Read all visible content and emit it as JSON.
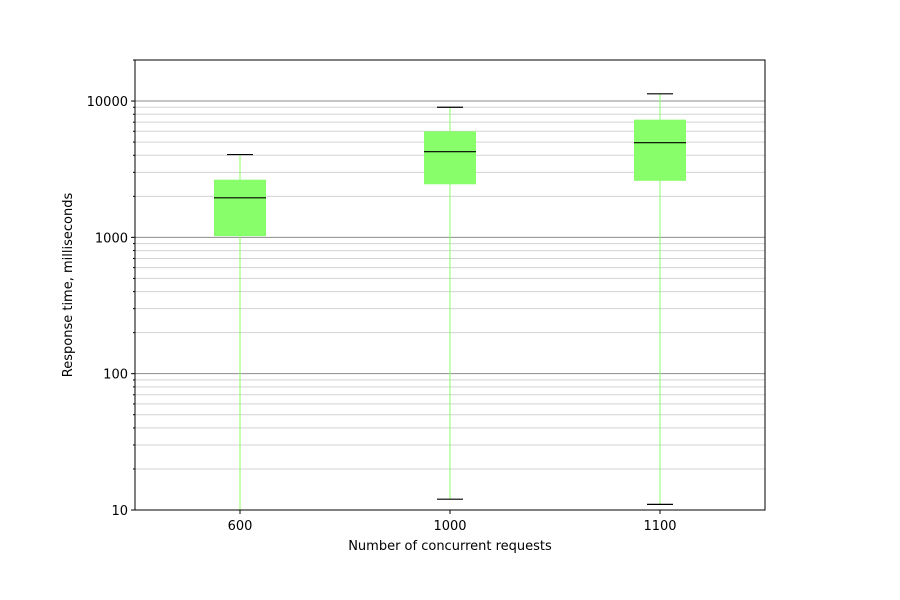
{
  "chart_data": {
    "type": "box",
    "title": "",
    "xlabel": "Number of concurrent requests",
    "ylabel": "Response time, milliseconds",
    "yscale": "log",
    "ylim": [
      10,
      20000
    ],
    "y_major_ticks": [
      10,
      100,
      1000,
      10000
    ],
    "y_tick_labels": [
      "10",
      "100",
      "1000",
      "10000"
    ],
    "grid": "horizontal major and minor",
    "categories": [
      "600",
      "1000",
      "1100"
    ],
    "boxes": [
      {
        "label": "600",
        "whisker_low": 10,
        "q1": 1020,
        "median": 1950,
        "q3": 2650,
        "whisker_high": 4050
      },
      {
        "label": "1000",
        "whisker_low": 12,
        "q1": 2450,
        "median": 4250,
        "q3": 6000,
        "whisker_high": 9000
      },
      {
        "label": "1100",
        "whisker_low": 11,
        "q1": 2600,
        "median": 4950,
        "q3": 7300,
        "whisker_high": 11300
      }
    ],
    "colors": {
      "box_fill": "#88ff6a",
      "whisker": "#88ff6a",
      "median": "#000000",
      "cap": "#000000",
      "major_grid": "#8c8c8c",
      "minor_grid": "#d3d3d3",
      "frame": "#000000"
    }
  }
}
